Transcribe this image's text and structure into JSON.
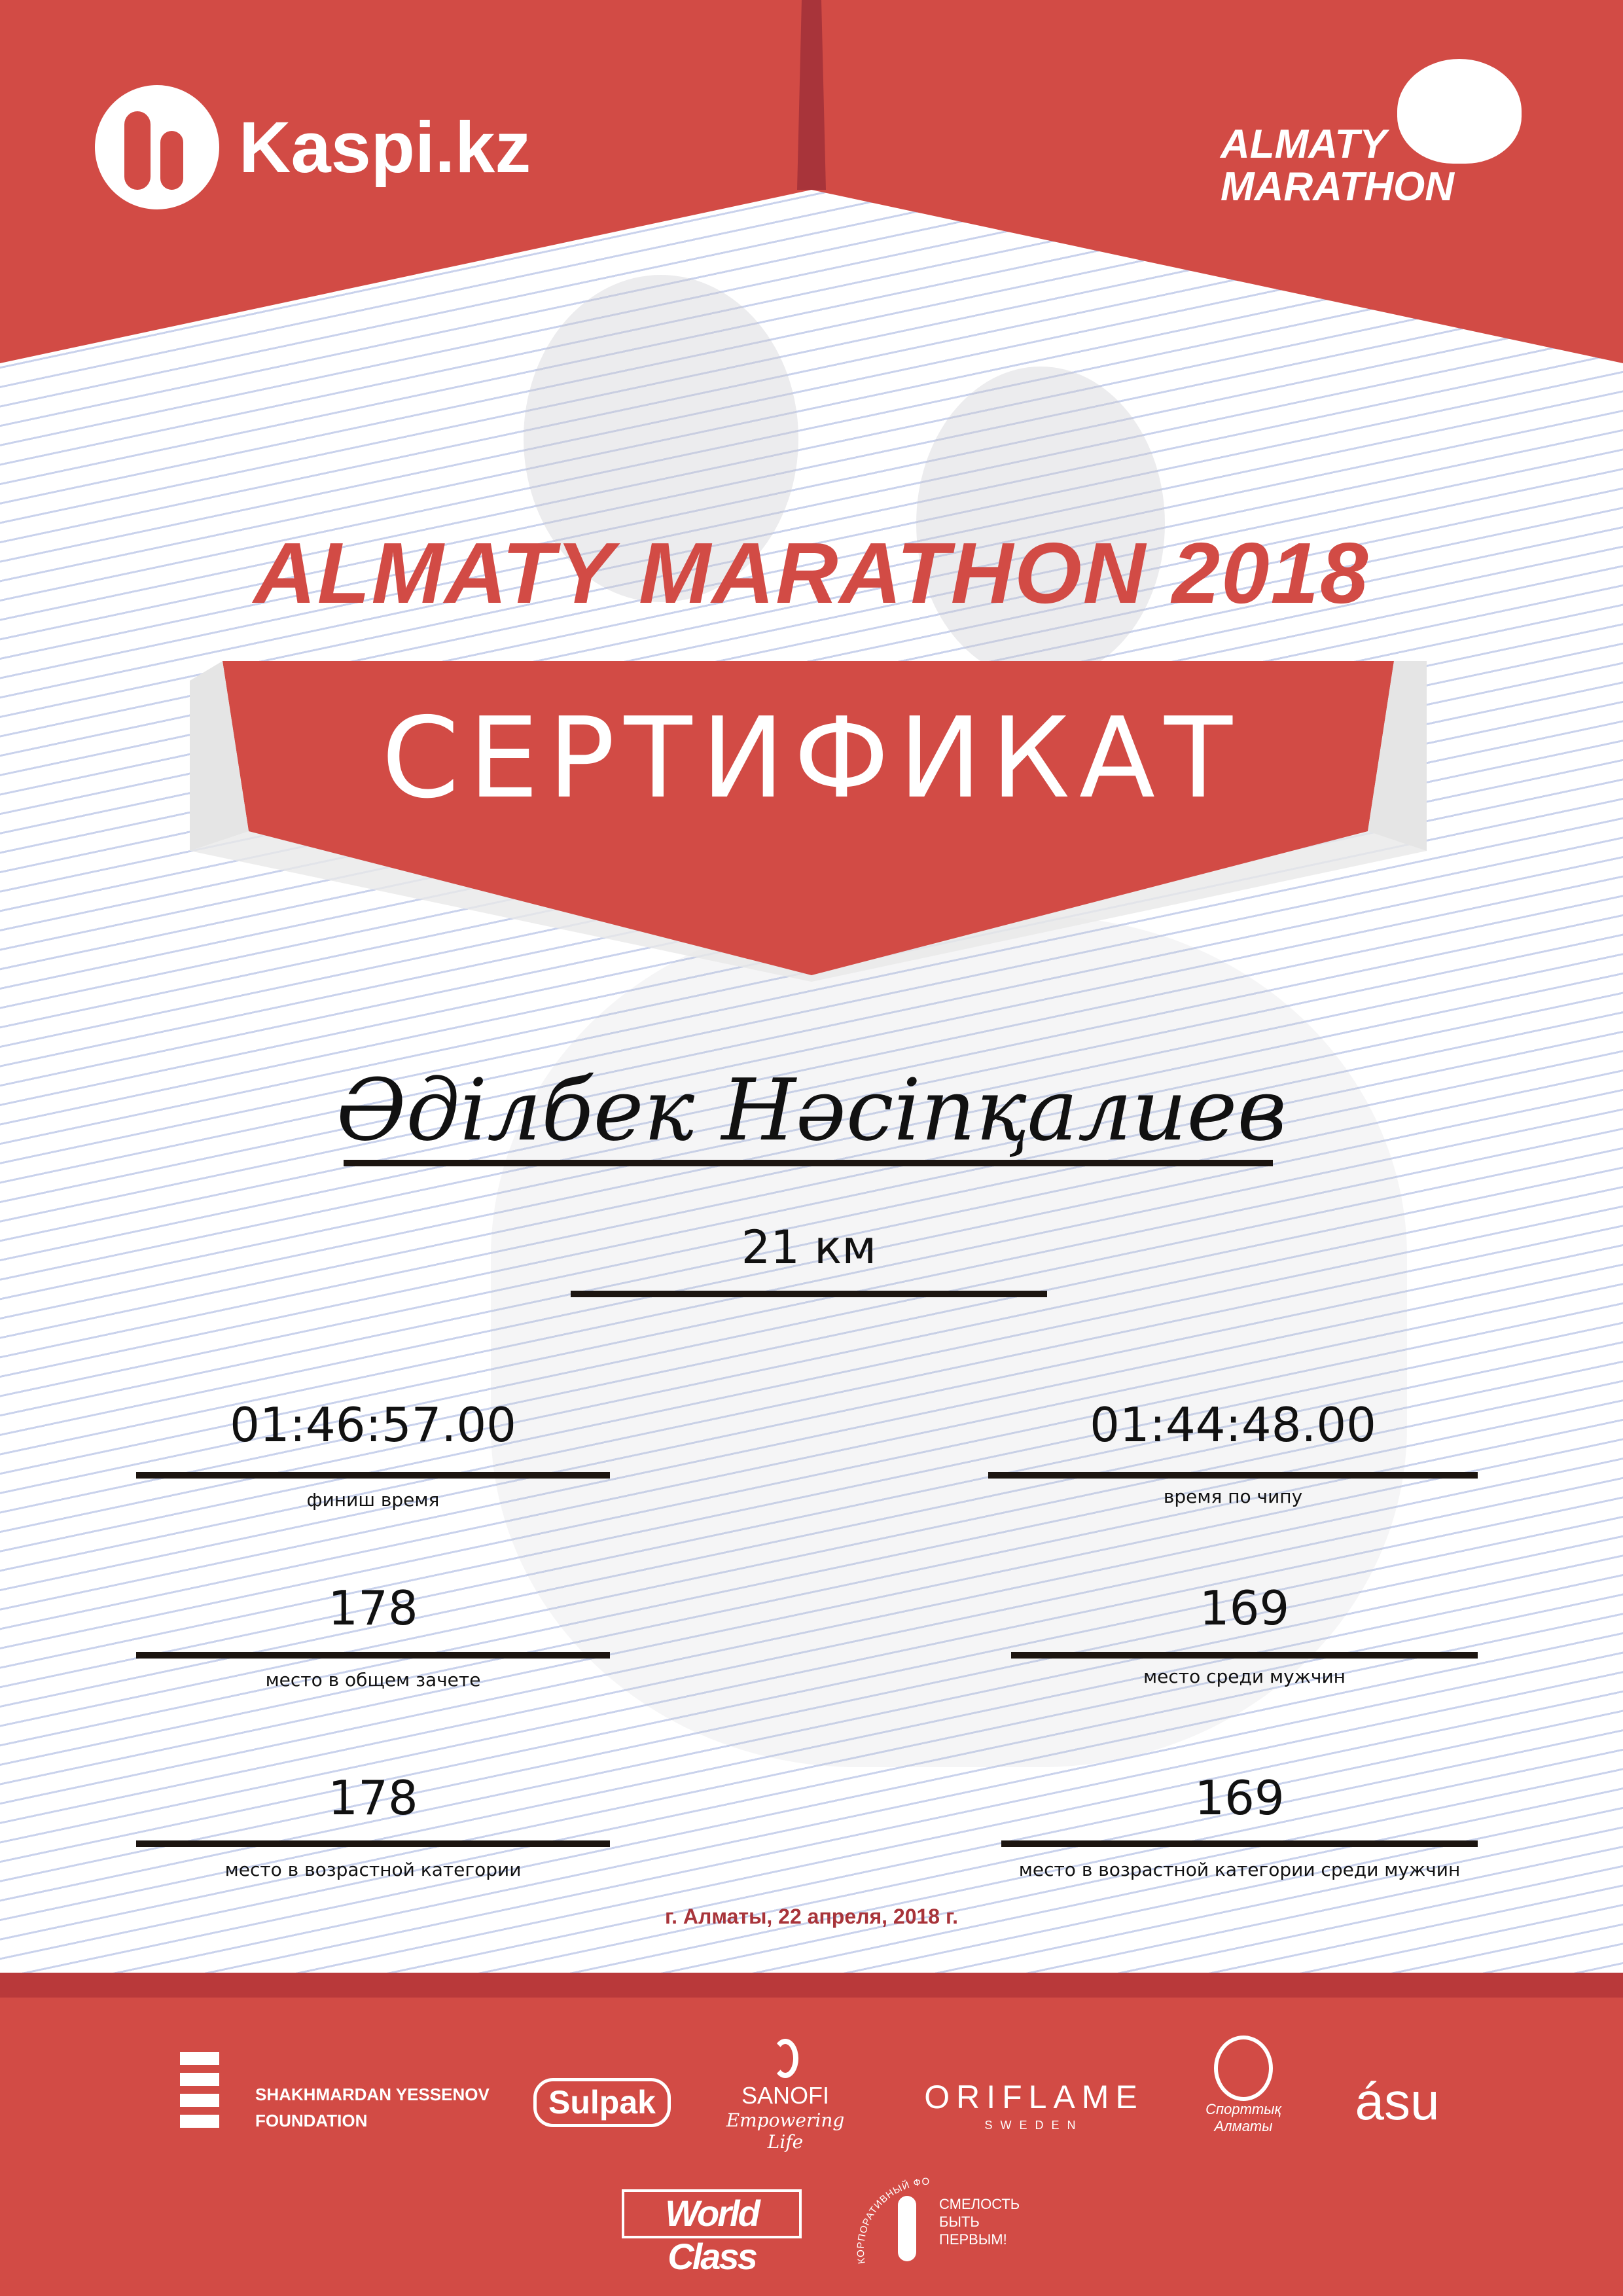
{
  "header": {
    "sponsor_logo": "Kaspi.kz",
    "event_logo_line1": "ALMATY",
    "event_logo_line2": "MARATHON",
    "brand_color": "#d24b45"
  },
  "title": "ALMATY MARATHON 2018",
  "banner": "СЕРТИФИКАТ",
  "participant": {
    "name": "Әділбек Нәсіпқалиев",
    "distance": "21 км"
  },
  "results": {
    "finish_time": {
      "value": "01:46:57.00",
      "label": "финиш время"
    },
    "chip_time": {
      "value": "01:44:48.00",
      "label": "время по чипу"
    },
    "overall_place": {
      "value": "178",
      "label": "место в общем зачете"
    },
    "gender_place": {
      "value": "169",
      "label": "место среди мужчин"
    },
    "age_place": {
      "value": "178",
      "label": "место в возрастной категории"
    },
    "age_gender_place": {
      "value": "169",
      "label": "место в возрастной категории среди мужчин"
    }
  },
  "date": "г. Алматы, 22 апреля, 2018 г.",
  "sponsors": {
    "yessenov": [
      "SHAKHMARDAN YESSENOV",
      "FOUNDATION"
    ],
    "sulpak": "Sulpak",
    "sanofi": "SANOFI",
    "sanofi_tag": "Empowering Life",
    "oriflame": "ORIFLAME",
    "oriflame_sub": "SWEDEN",
    "sport_almaty": [
      "Спорттық",
      "Алматы"
    ],
    "asu": "ásu",
    "worldclass": "World Class",
    "smelost": [
      "СМЕЛОСТЬ",
      "БЫТЬ",
      "ПЕРВЫМ!"
    ],
    "smelost_arc": "КОРПОРАТИВНЫЙ ФОНД"
  }
}
